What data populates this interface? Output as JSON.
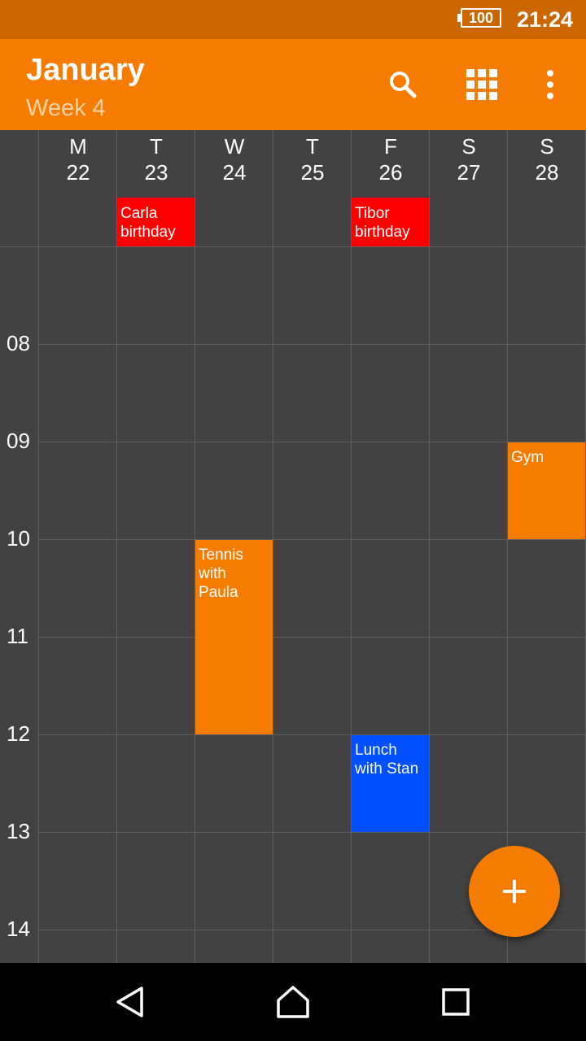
{
  "status_bar": {
    "battery": "100",
    "time": "21:24"
  },
  "app_bar": {
    "title": "January",
    "subtitle": "Week 4",
    "actions": [
      "search-icon",
      "grid-view-icon",
      "more-vert-icon"
    ]
  },
  "days": [
    {
      "letter": "M",
      "number": "22"
    },
    {
      "letter": "T",
      "number": "23"
    },
    {
      "letter": "W",
      "number": "24"
    },
    {
      "letter": "T",
      "number": "25"
    },
    {
      "letter": "F",
      "number": "26"
    },
    {
      "letter": "S",
      "number": "27"
    },
    {
      "letter": "S",
      "number": "28"
    }
  ],
  "hours": [
    "08",
    "09",
    "10",
    "11",
    "12",
    "13",
    "14"
  ],
  "all_day_events": [
    {
      "day": 1,
      "title": "Carla birthday",
      "color": "#ff0000"
    },
    {
      "day": 4,
      "title": "Tibor birthday",
      "color": "#ff0000"
    }
  ],
  "events": [
    {
      "day": 6,
      "start_hour": 9,
      "end_hour": 10,
      "title": "Gym",
      "color": "#f57c00"
    },
    {
      "day": 2,
      "start_hour": 10,
      "end_hour": 12,
      "title": "Tennis with Paula",
      "color": "#f57c00"
    },
    {
      "day": 4,
      "start_hour": 12,
      "end_hour": 13,
      "title": "Lunch with Stan",
      "color": "#0050ff"
    }
  ],
  "fab": {
    "icon": "plus-icon"
  },
  "nav_bar": [
    "back-icon",
    "home-icon",
    "recents-icon"
  ],
  "colors": {
    "accent": "#f57c00",
    "status_bar": "#cc6600",
    "background": "#424242"
  }
}
